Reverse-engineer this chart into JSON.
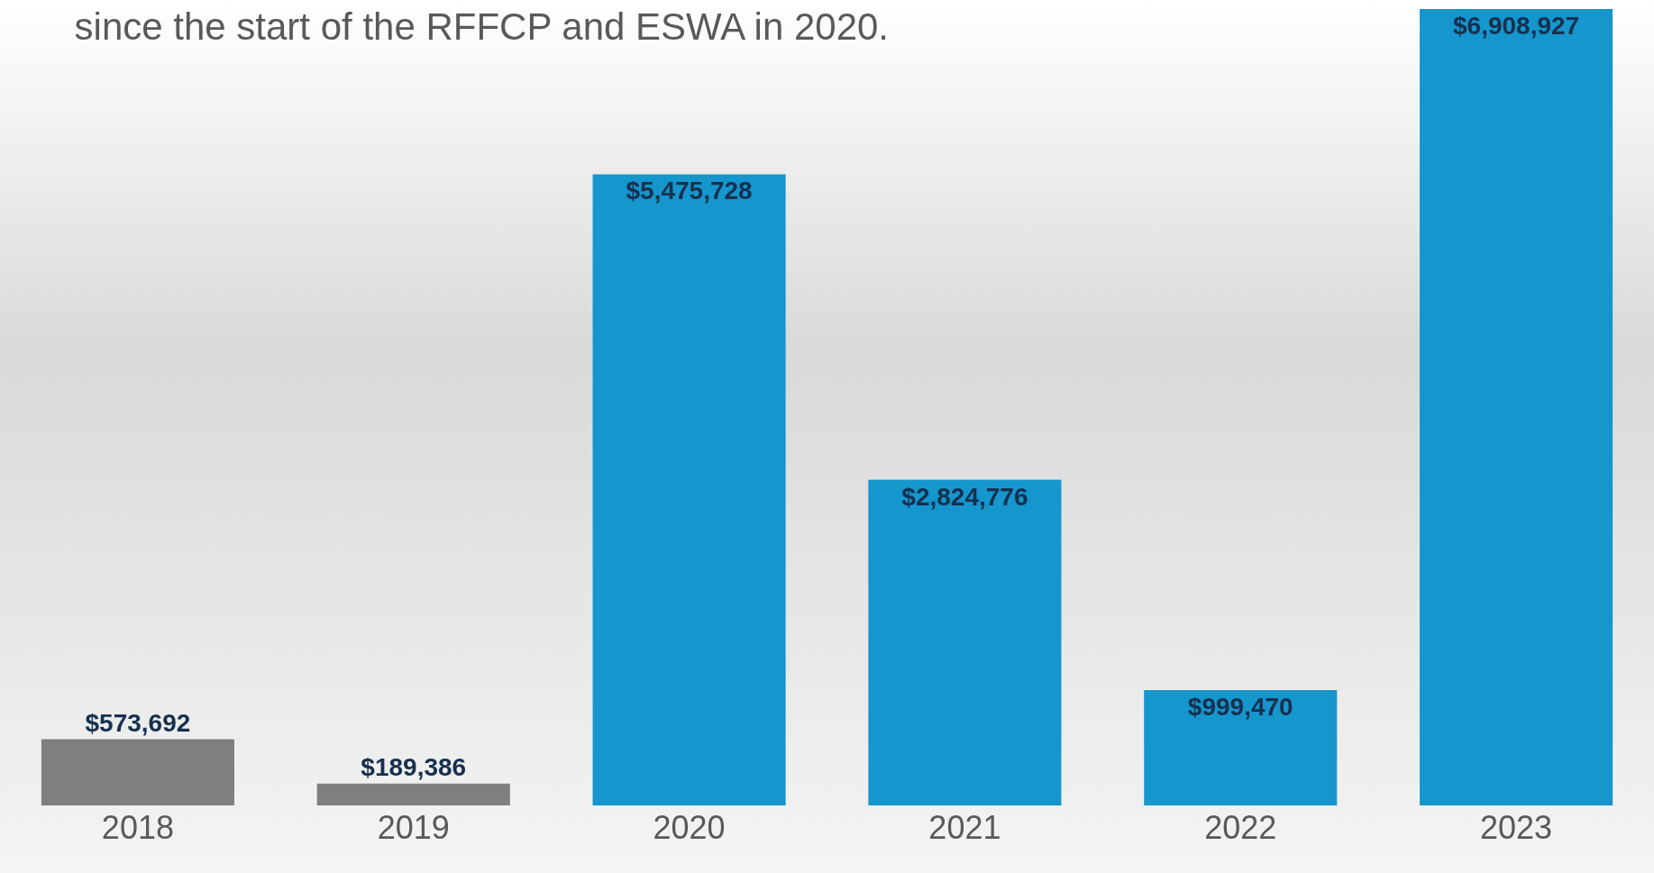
{
  "chart_data": {
    "type": "bar",
    "title": "since the start of the RFFCP and ESWA in 2020.",
    "categories": [
      "2018",
      "2019",
      "2020",
      "2021",
      "2022",
      "2023"
    ],
    "values": [
      573692,
      189386,
      5475728,
      2824776,
      999470,
      6908927
    ],
    "colors": [
      "#7f7f7f",
      "#7f7f7f",
      "#1596cc",
      "#1596cc",
      "#1596cc",
      "#1596cc"
    ],
    "value_labels": [
      "$573,692",
      "$189,386",
      "$5,475,728",
      "$2,824,776",
      "$999,470",
      "$6,908,927"
    ],
    "grid": false
  }
}
